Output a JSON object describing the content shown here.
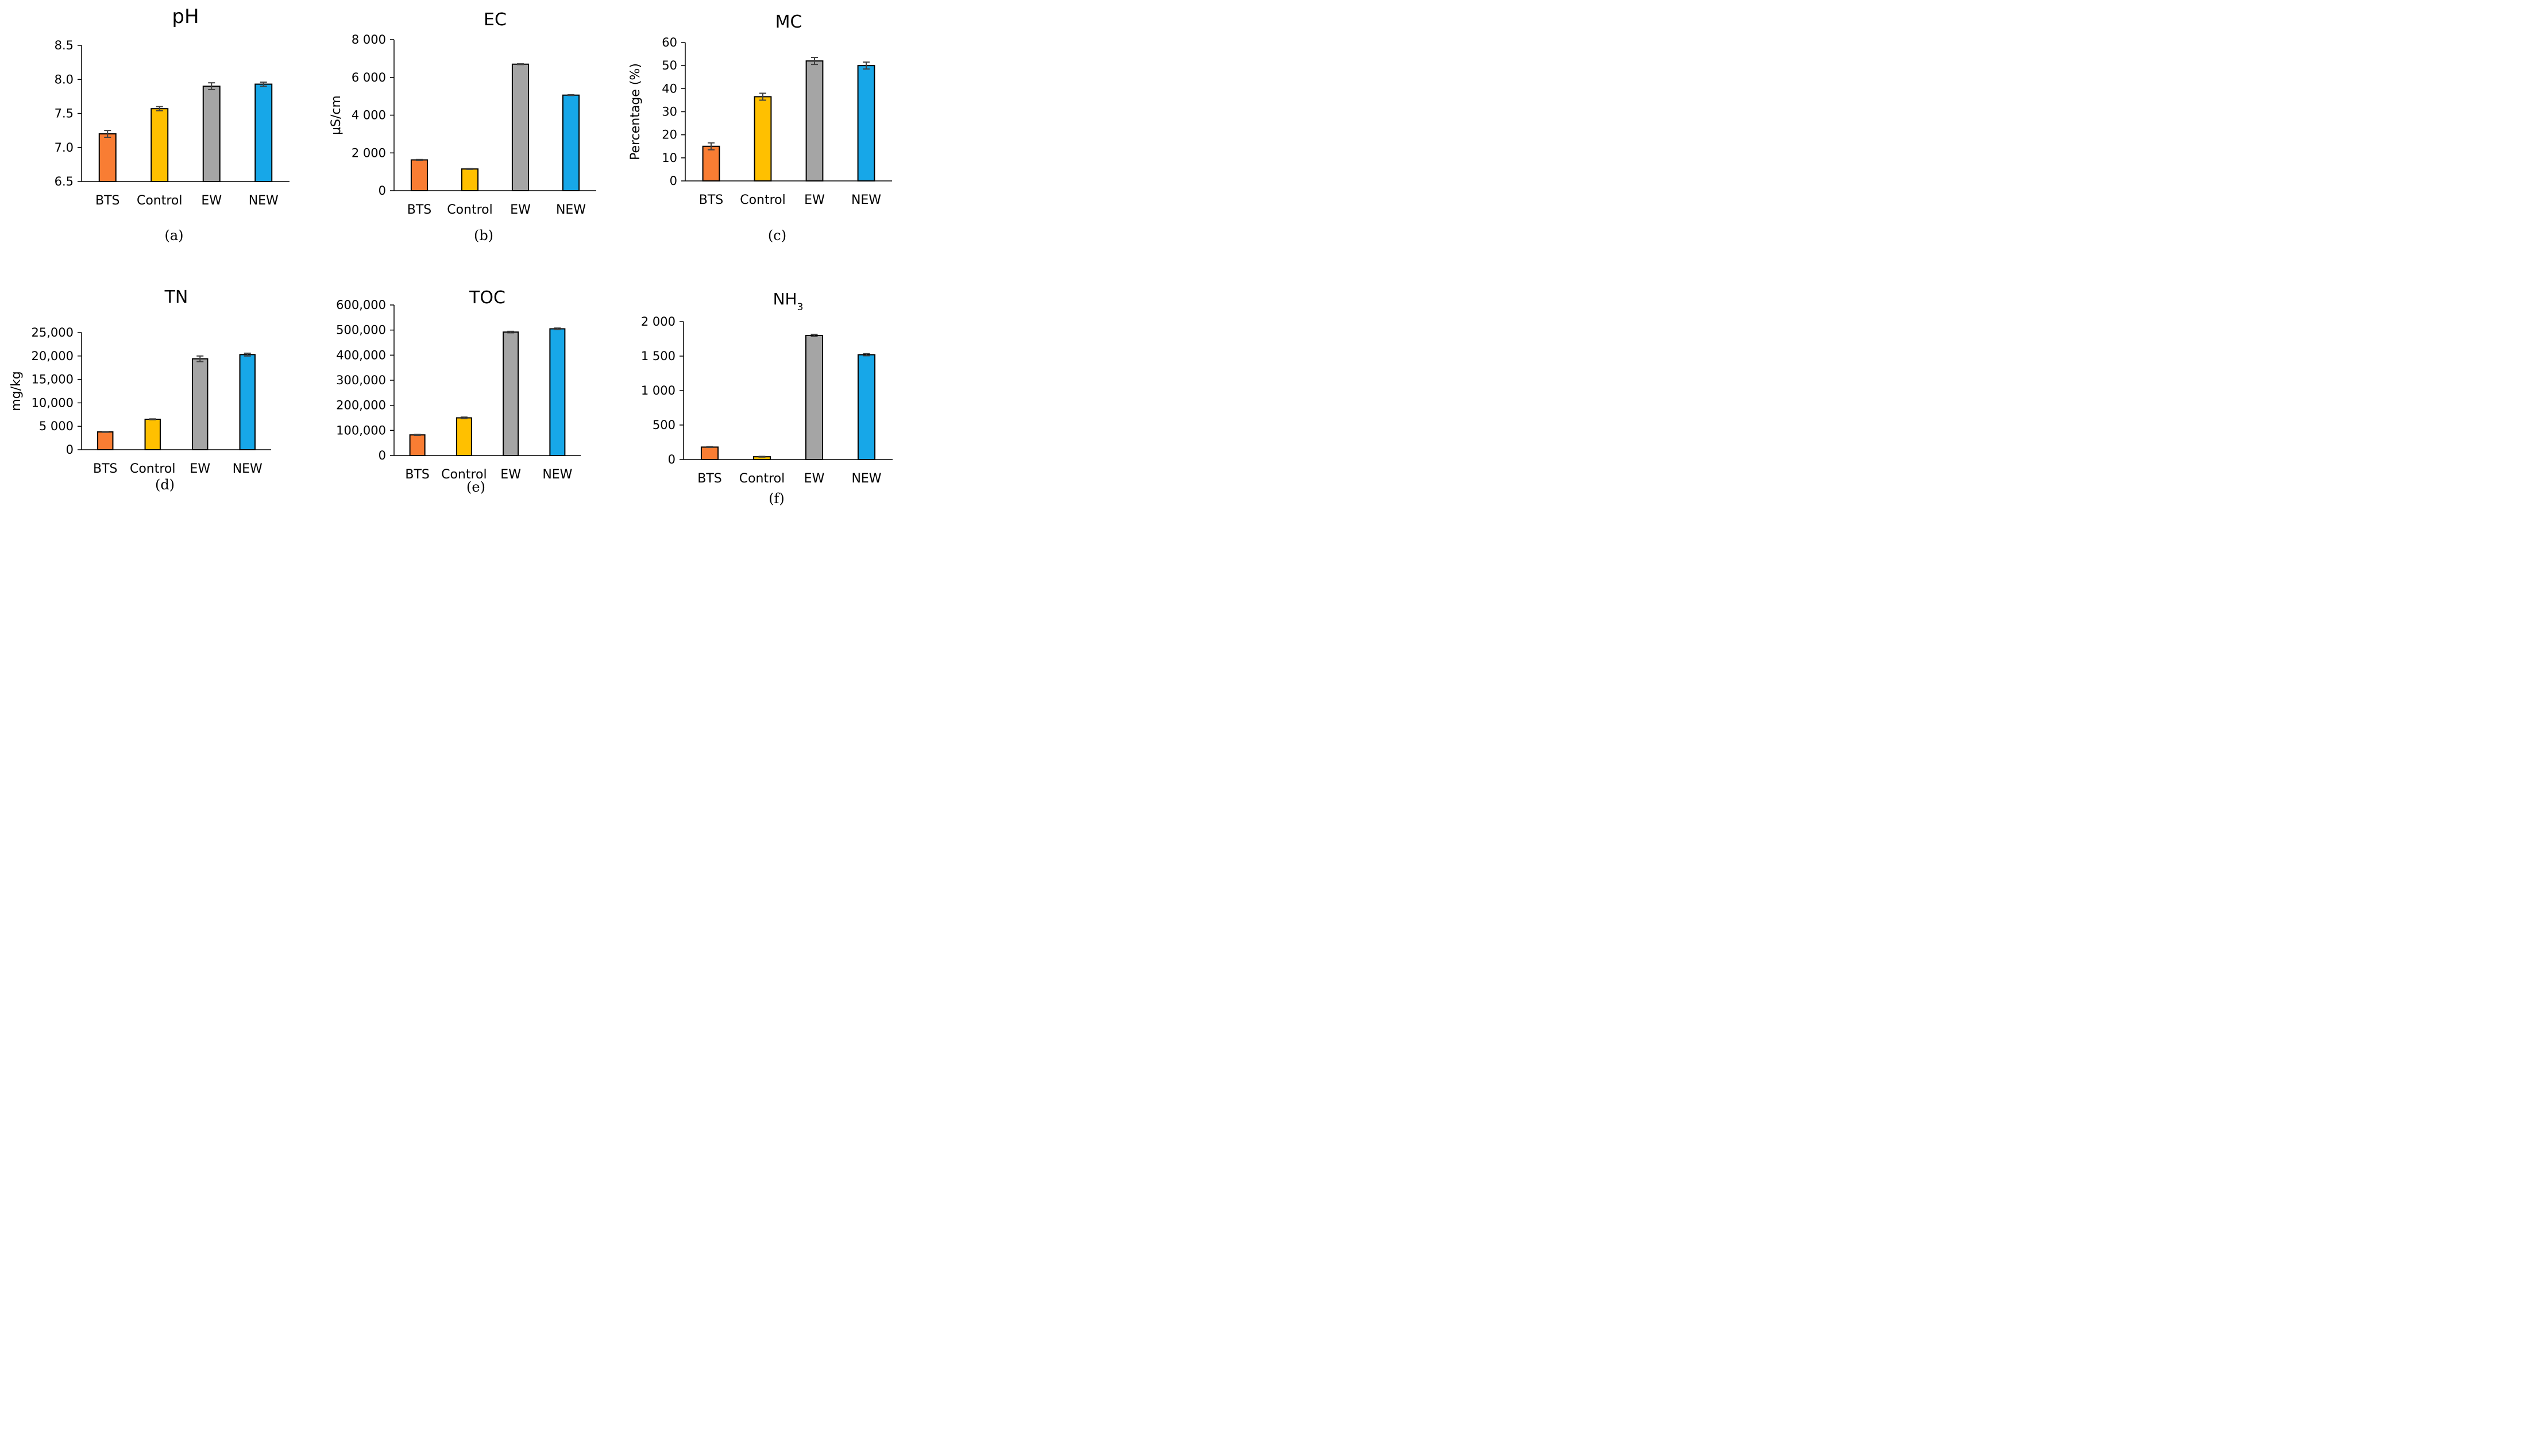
{
  "figure": {
    "colors": {
      "BTS": "#f97d33",
      "Control": "#ffc000",
      "EW": "#a5a5a5",
      "NEW": "#17a7e8",
      "axis": "#000000",
      "error_bar": "#404040"
    }
  },
  "chart_data": [
    {
      "type": "bar",
      "panel": "(a)",
      "title": "pH",
      "title_sub": "",
      "xlabel": "",
      "ylabel": "",
      "categories": [
        "BTS",
        "Control",
        "EW",
        "NEW"
      ],
      "values": [
        7.2,
        7.57,
        7.9,
        7.93
      ],
      "errors": [
        0.05,
        0.03,
        0.05,
        0.03
      ],
      "ylim": [
        6.5,
        8.5
      ],
      "yticks": [
        6.5,
        7.0,
        7.5,
        8.0,
        8.5
      ],
      "ytick_labels": [
        "6.5",
        "7.0",
        "7.5",
        "8.0",
        "8.5"
      ],
      "grid": false,
      "legend": "none"
    },
    {
      "type": "bar",
      "panel": "(b)",
      "title": "EC",
      "title_sub": "",
      "xlabel": "",
      "ylabel": "μS/cm",
      "categories": [
        "BTS",
        "Control",
        "EW",
        "NEW"
      ],
      "values": [
        1630,
        1150,
        6700,
        5060
      ],
      "errors": [
        20,
        20,
        20,
        20
      ],
      "ylim": [
        0,
        8000
      ],
      "yticks": [
        0,
        2000,
        4000,
        6000,
        8000
      ],
      "ytick_labels": [
        "0",
        "2 000",
        "4 000",
        "6 000",
        "8 000"
      ],
      "grid": false,
      "legend": "none"
    },
    {
      "type": "bar",
      "panel": "(c)",
      "title": "MC",
      "title_sub": "",
      "xlabel": "",
      "ylabel": "Percentage (%)",
      "categories": [
        "BTS",
        "Control",
        "EW",
        "NEW"
      ],
      "values": [
        15,
        36.5,
        52,
        50
      ],
      "errors": [
        1.5,
        1.5,
        1.5,
        1.5
      ],
      "ylim": [
        0,
        60
      ],
      "yticks": [
        0,
        10,
        20,
        30,
        40,
        50,
        60
      ],
      "ytick_labels": [
        "0",
        "10",
        "20",
        "30",
        "40",
        "50",
        "60"
      ],
      "grid": false,
      "legend": "none"
    },
    {
      "type": "bar",
      "panel": "(d)",
      "title": "TN",
      "title_sub": "",
      "xlabel": "",
      "ylabel": "mg/kg",
      "categories": [
        "BTS",
        "Control",
        "EW",
        "NEW"
      ],
      "values": [
        3800,
        6500,
        19400,
        20300
      ],
      "errors": [
        80,
        80,
        600,
        300
      ],
      "ylim": [
        0,
        25000
      ],
      "yticks": [
        0,
        5000,
        10000,
        15000,
        20000,
        25000
      ],
      "ytick_labels": [
        "0",
        "5 000",
        "10,000",
        "15,000",
        "20,000",
        "25,000"
      ],
      "grid": false,
      "legend": "none"
    },
    {
      "type": "bar",
      "panel": "(e)",
      "title": "TOC",
      "title_sub": "",
      "xlabel": "",
      "ylabel": "",
      "categories": [
        "BTS",
        "Control",
        "EW",
        "NEW"
      ],
      "values": [
        82000,
        150000,
        492000,
        505000
      ],
      "errors": [
        2000,
        3000,
        3000,
        3000
      ],
      "ylim": [
        0,
        600000
      ],
      "yticks": [
        0,
        100000,
        200000,
        300000,
        400000,
        500000,
        600000
      ],
      "ytick_labels": [
        "0",
        "100,000",
        "200,000",
        "300,000",
        "400,000",
        "500,000",
        "600,000"
      ],
      "grid": false,
      "legend": "none"
    },
    {
      "type": "bar",
      "panel": "(f)",
      "title": "NH",
      "title_sub": "3",
      "xlabel": "",
      "ylabel": "",
      "categories": [
        "BTS",
        "Control",
        "EW",
        "NEW"
      ],
      "values": [
        180,
        40,
        1800,
        1520
      ],
      "errors": [
        5,
        5,
        15,
        15
      ],
      "ylim": [
        0,
        2000
      ],
      "yticks": [
        0,
        500,
        1000,
        1500,
        2000
      ],
      "ytick_labels": [
        "0",
        "500",
        "1 000",
        "1 500",
        "2 000"
      ],
      "grid": false,
      "legend": "none"
    }
  ]
}
